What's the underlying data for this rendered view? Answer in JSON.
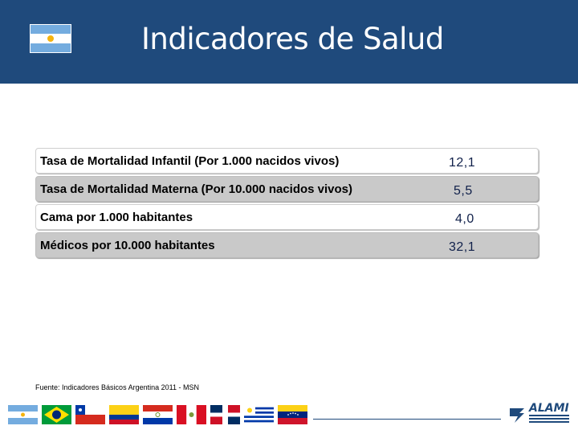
{
  "header": {
    "title": "Indicadores de Salud",
    "flag_icon": "argentina-flag-icon"
  },
  "indicators": [
    {
      "label": "Tasa de Mortalidad Infantil (Por 1.000 nacidos vivos)",
      "value": "12,1"
    },
    {
      "label": "Tasa de Mortalidad Materna (Por 10.000 nacidos vivos)",
      "value": "5,5"
    },
    {
      "label": "Cama por 1.000 habitantes",
      "value": "4,0"
    },
    {
      "label": "Médicos por 10.000 habitantes",
      "value": "32,1"
    }
  ],
  "source": "Fuente: Indicadores Básicos Argentina 2011 - MSN",
  "footer": {
    "flags": [
      "argentina",
      "brazil",
      "chile",
      "colombia",
      "paraguay",
      "peru",
      "dominican-republic",
      "uruguay",
      "venezuela"
    ],
    "logo_text": "ALAMI"
  },
  "colors": {
    "header_bg": "#1f4a7c",
    "row_gray": "#c9c9c9",
    "value_text": "#10204a"
  }
}
